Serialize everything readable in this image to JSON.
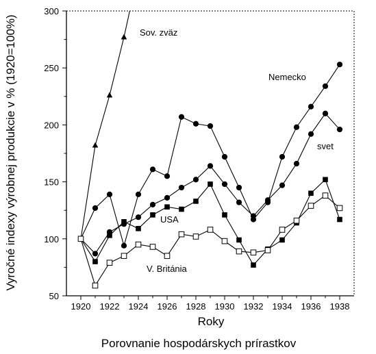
{
  "chart_data": {
    "type": "line",
    "title": "",
    "caption": "Porovnanie hospodárskych prírastkov",
    "xlabel": "Roky",
    "ylabel": "Vyročné indexy výrobnej produkcie v % (1920=100%)",
    "xlim": [
      1919,
      1939
    ],
    "ylim": [
      50,
      300
    ],
    "x_ticks": [
      1920,
      1922,
      1924,
      1926,
      1928,
      1930,
      1932,
      1934,
      1936,
      1938
    ],
    "y_ticks": [
      50,
      100,
      150,
      200,
      250,
      300
    ],
    "x_tick_labels": [
      "1920",
      "1922",
      "1924",
      "1926",
      "1928",
      "1930",
      "1932",
      "1934",
      "1936",
      "1938"
    ],
    "y_tick_labels": [
      "50",
      "100",
      "150",
      "200",
      "250",
      "300"
    ],
    "grid": false,
    "series": [
      {
        "name": "Sov. zväz",
        "marker": "triangle",
        "x": [
          1920,
          1921,
          1922,
          1923
        ],
        "y": [
          100,
          182,
          226,
          277
        ],
        "continues_to": {
          "x": 1923.4,
          "y": 300
        }
      },
      {
        "name": "Nemecko",
        "marker": "filled-circle",
        "x": [
          1920,
          1921,
          1922,
          1923,
          1924,
          1925,
          1926,
          1927,
          1928,
          1929,
          1930,
          1931,
          1932,
          1933,
          1934,
          1935,
          1936,
          1937,
          1938
        ],
        "y": [
          100,
          127,
          139,
          94,
          139,
          161,
          155,
          207,
          201,
          199,
          172,
          145,
          117,
          132,
          172,
          198,
          216,
          234,
          253
        ]
      },
      {
        "name": "svet",
        "marker": "filled-circle",
        "x": [
          1920,
          1921,
          1922,
          1923,
          1924,
          1925,
          1926,
          1927,
          1928,
          1929,
          1930,
          1931,
          1932,
          1933,
          1934,
          1935,
          1936,
          1937,
          1938
        ],
        "y": [
          100,
          87,
          106,
          113,
          119,
          130,
          136,
          145,
          152,
          164,
          148,
          132,
          120,
          134,
          147,
          166,
          192,
          210,
          196
        ]
      },
      {
        "name": "USA",
        "marker": "filled-square",
        "x": [
          1920,
          1921,
          1922,
          1923,
          1924,
          1925,
          1926,
          1927,
          1928,
          1929,
          1930,
          1931,
          1932,
          1933,
          1934,
          1935,
          1936,
          1937,
          1938
        ],
        "y": [
          100,
          80,
          103,
          115,
          109,
          121,
          128,
          126,
          133,
          148,
          121,
          99,
          77,
          91,
          99,
          114,
          140,
          152,
          117
        ]
      },
      {
        "name": "V. Británia",
        "marker": "open-square",
        "x": [
          1920,
          1921,
          1922,
          1923,
          1924,
          1925,
          1926,
          1927,
          1928,
          1929,
          1930,
          1931,
          1932,
          1933,
          1934,
          1935,
          1936,
          1937,
          1938
        ],
        "y": [
          100,
          59,
          79,
          85,
          95,
          93,
          85,
          104,
          102,
          108,
          98,
          89,
          88,
          90,
          108,
          116,
          129,
          138,
          127
        ]
      }
    ]
  }
}
